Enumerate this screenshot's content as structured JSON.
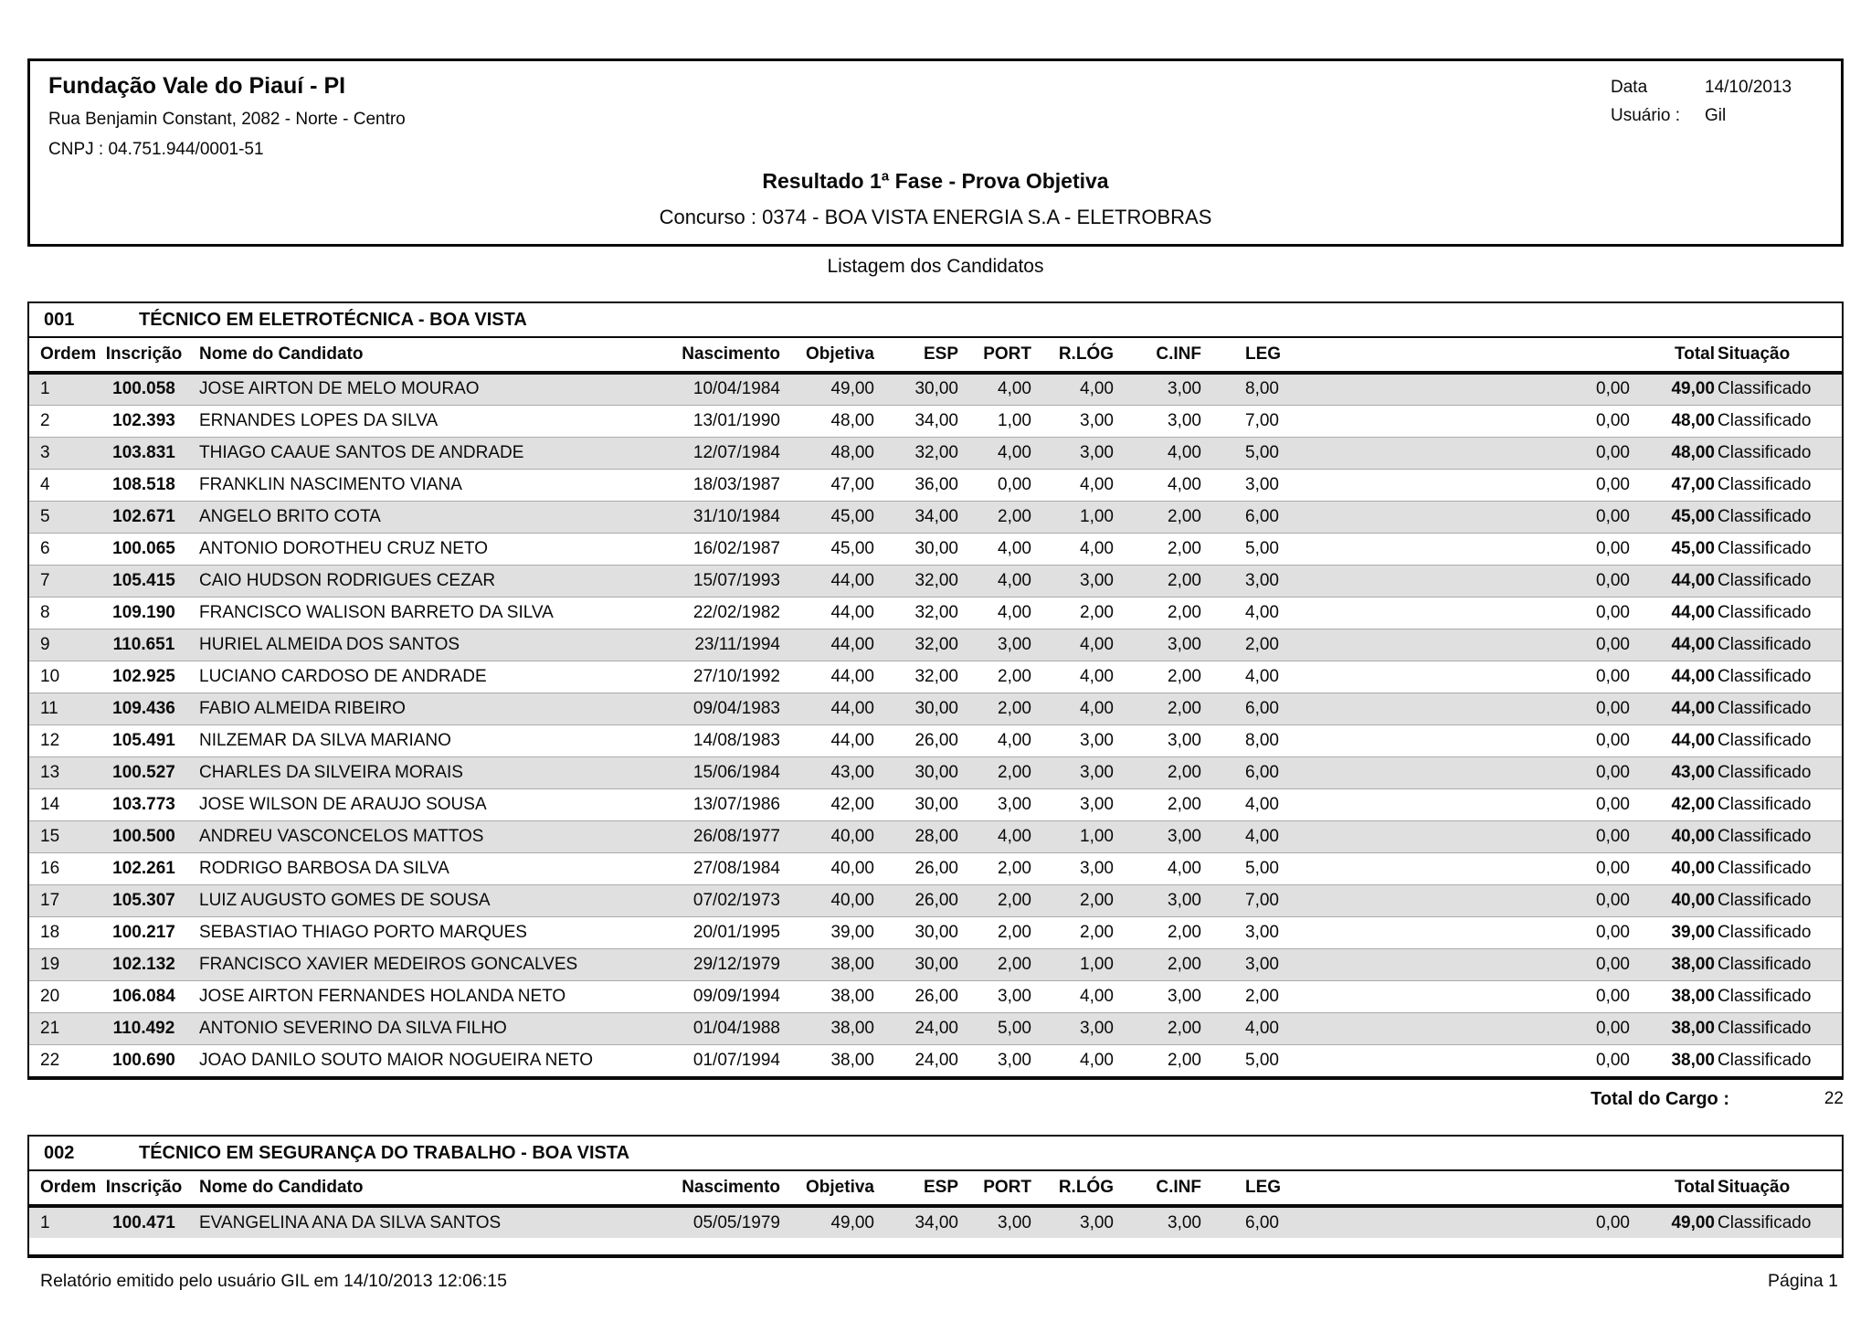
{
  "header": {
    "org_name": "Fundação Vale do Piauí - PI",
    "address": "Rua Benjamin Constant, 2082 - Norte - Centro",
    "cnpj": "CNPJ : 04.751.944/0001-51",
    "date_label": "Data",
    "date_value": "14/10/2013",
    "user_label": "Usuário :",
    "user_value": "Gil",
    "report_title": "Resultado 1ª Fase - Prova Objetiva",
    "contest_line": "Concurso : 0374 - BOA VISTA ENERGIA S.A - ELETROBRAS"
  },
  "listing_title": "Listagem dos Candidatos",
  "columns": [
    "Ordem",
    "Inscrição",
    "Nome do Candidato",
    "Nascimento",
    "Objetiva",
    "ESP",
    "PORT",
    "R.LÓG",
    "C.INF",
    "LEG",
    "",
    "Total",
    "Situação"
  ],
  "row_fields": [
    "ordem",
    "inscricao",
    "nome",
    "nascimento",
    "objetiva",
    "esp",
    "port",
    "r_log",
    "c_inf",
    "leg",
    "extra",
    "total",
    "situacao"
  ],
  "colors": {
    "row_shade": "#e0e0e0",
    "border": "#0a0a0a",
    "row_separator": "#ababab"
  },
  "sections": [
    {
      "code": "001",
      "title": "TÉCNICO EM ELETROTÉCNICA - BOA VISTA",
      "rows": [
        [
          "1",
          "100.058",
          "JOSE AIRTON DE MELO MOURAO",
          "10/04/1984",
          "49,00",
          "30,00",
          "4,00",
          "4,00",
          "3,00",
          "8,00",
          "0,00",
          "49,00",
          "Classificado"
        ],
        [
          "2",
          "102.393",
          "ERNANDES LOPES DA SILVA",
          "13/01/1990",
          "48,00",
          "34,00",
          "1,00",
          "3,00",
          "3,00",
          "7,00",
          "0,00",
          "48,00",
          "Classificado"
        ],
        [
          "3",
          "103.831",
          "THIAGO CAAUE SANTOS DE ANDRADE",
          "12/07/1984",
          "48,00",
          "32,00",
          "4,00",
          "3,00",
          "4,00",
          "5,00",
          "0,00",
          "48,00",
          "Classificado"
        ],
        [
          "4",
          "108.518",
          "FRANKLIN NASCIMENTO VIANA",
          "18/03/1987",
          "47,00",
          "36,00",
          "0,00",
          "4,00",
          "4,00",
          "3,00",
          "0,00",
          "47,00",
          "Classificado"
        ],
        [
          "5",
          "102.671",
          "ANGELO BRITO COTA",
          "31/10/1984",
          "45,00",
          "34,00",
          "2,00",
          "1,00",
          "2,00",
          "6,00",
          "0,00",
          "45,00",
          "Classificado"
        ],
        [
          "6",
          "100.065",
          "ANTONIO DOROTHEU CRUZ NETO",
          "16/02/1987",
          "45,00",
          "30,00",
          "4,00",
          "4,00",
          "2,00",
          "5,00",
          "0,00",
          "45,00",
          "Classificado"
        ],
        [
          "7",
          "105.415",
          "CAIO HUDSON RODRIGUES CEZAR",
          "15/07/1993",
          "44,00",
          "32,00",
          "4,00",
          "3,00",
          "2,00",
          "3,00",
          "0,00",
          "44,00",
          "Classificado"
        ],
        [
          "8",
          "109.190",
          "FRANCISCO WALISON BARRETO DA SILVA",
          "22/02/1982",
          "44,00",
          "32,00",
          "4,00",
          "2,00",
          "2,00",
          "4,00",
          "0,00",
          "44,00",
          "Classificado"
        ],
        [
          "9",
          "110.651",
          "HURIEL ALMEIDA DOS SANTOS",
          "23/11/1994",
          "44,00",
          "32,00",
          "3,00",
          "4,00",
          "3,00",
          "2,00",
          "0,00",
          "44,00",
          "Classificado"
        ],
        [
          "10",
          "102.925",
          "LUCIANO CARDOSO DE ANDRADE",
          "27/10/1992",
          "44,00",
          "32,00",
          "2,00",
          "4,00",
          "2,00",
          "4,00",
          "0,00",
          "44,00",
          "Classificado"
        ],
        [
          "11",
          "109.436",
          "FABIO ALMEIDA RIBEIRO",
          "09/04/1983",
          "44,00",
          "30,00",
          "2,00",
          "4,00",
          "2,00",
          "6,00",
          "0,00",
          "44,00",
          "Classificado"
        ],
        [
          "12",
          "105.491",
          "NILZEMAR DA SILVA MARIANO",
          "14/08/1983",
          "44,00",
          "26,00",
          "4,00",
          "3,00",
          "3,00",
          "8,00",
          "0,00",
          "44,00",
          "Classificado"
        ],
        [
          "13",
          "100.527",
          "CHARLES DA SILVEIRA MORAIS",
          "15/06/1984",
          "43,00",
          "30,00",
          "2,00",
          "3,00",
          "2,00",
          "6,00",
          "0,00",
          "43,00",
          "Classificado"
        ],
        [
          "14",
          "103.773",
          "JOSE WILSON DE ARAUJO SOUSA",
          "13/07/1986",
          "42,00",
          "30,00",
          "3,00",
          "3,00",
          "2,00",
          "4,00",
          "0,00",
          "42,00",
          "Classificado"
        ],
        [
          "15",
          "100.500",
          "ANDREU VASCONCELOS MATTOS",
          "26/08/1977",
          "40,00",
          "28,00",
          "4,00",
          "1,00",
          "3,00",
          "4,00",
          "0,00",
          "40,00",
          "Classificado"
        ],
        [
          "16",
          "102.261",
          "RODRIGO BARBOSA DA SILVA",
          "27/08/1984",
          "40,00",
          "26,00",
          "2,00",
          "3,00",
          "4,00",
          "5,00",
          "0,00",
          "40,00",
          "Classificado"
        ],
        [
          "17",
          "105.307",
          "LUIZ AUGUSTO GOMES DE SOUSA",
          "07/02/1973",
          "40,00",
          "26,00",
          "2,00",
          "2,00",
          "3,00",
          "7,00",
          "0,00",
          "40,00",
          "Classificado"
        ],
        [
          "18",
          "100.217",
          "SEBASTIAO THIAGO PORTO MARQUES",
          "20/01/1995",
          "39,00",
          "30,00",
          "2,00",
          "2,00",
          "2,00",
          "3,00",
          "0,00",
          "39,00",
          "Classificado"
        ],
        [
          "19",
          "102.132",
          "FRANCISCO XAVIER MEDEIROS GONCALVES",
          "29/12/1979",
          "38,00",
          "30,00",
          "2,00",
          "1,00",
          "2,00",
          "3,00",
          "0,00",
          "38,00",
          "Classificado"
        ],
        [
          "20",
          "106.084",
          "JOSE AIRTON FERNANDES HOLANDA NETO",
          "09/09/1994",
          "38,00",
          "26,00",
          "3,00",
          "4,00",
          "3,00",
          "2,00",
          "0,00",
          "38,00",
          "Classificado"
        ],
        [
          "21",
          "110.492",
          "ANTONIO SEVERINO DA SILVA FILHO",
          "01/04/1988",
          "38,00",
          "24,00",
          "5,00",
          "3,00",
          "2,00",
          "4,00",
          "0,00",
          "38,00",
          "Classificado"
        ],
        [
          "22",
          "100.690",
          "JOAO DANILO SOUTO MAIOR NOGUEIRA NETO",
          "01/07/1994",
          "38,00",
          "24,00",
          "3,00",
          "4,00",
          "2,00",
          "5,00",
          "0,00",
          "38,00",
          "Classificado"
        ]
      ],
      "total_label": "Total do Cargo :",
      "total_value": "22"
    },
    {
      "code": "002",
      "title": "TÉCNICO EM SEGURANÇA DO TRABALHO - BOA VISTA",
      "rows": [
        [
          "1",
          "100.471",
          "EVANGELINA ANA DA SILVA SANTOS",
          "05/05/1979",
          "49,00",
          "34,00",
          "3,00",
          "3,00",
          "3,00",
          "6,00",
          "0,00",
          "49,00",
          "Classificado"
        ]
      ]
    }
  ],
  "footer": {
    "left": "Relatório emitido pelo usuário GIL em 14/10/2013 12:06:15",
    "right": "Página 1"
  }
}
